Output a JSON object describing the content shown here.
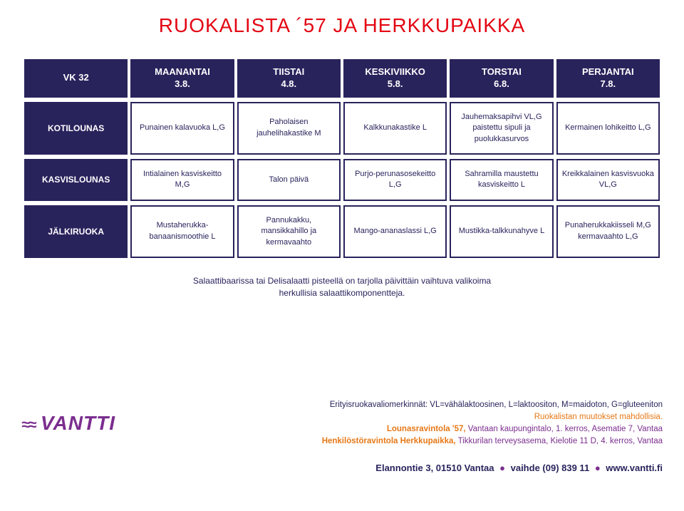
{
  "title": "RUOKALISTA ´57 JA HERKKUPAIKKA",
  "week_label": "VK 32",
  "days": [
    {
      "name": "MAANANTAI",
      "date": "3.8."
    },
    {
      "name": "TIISTAI",
      "date": "4.8."
    },
    {
      "name": "KESKIVIIKKO",
      "date": "5.8."
    },
    {
      "name": "TORSTAI",
      "date": "6.8."
    },
    {
      "name": "PERJANTAI",
      "date": "7.8."
    }
  ],
  "rows": [
    {
      "label": "KOTILOUNAS",
      "cells": [
        "Punainen kalavuoka L,G",
        "Paholaisen jauhelihakastike M",
        "Kalkkunakastike L",
        "Jauhemaksapihvi VL,G paistettu sipuli ja puolukkasurvos",
        "Kermainen lohikeitto L,G"
      ]
    },
    {
      "label": "KASVISLOUNAS",
      "cells": [
        "Intialainen kasviskeitto M,G",
        "Talon päivä",
        "Purjo-perunasosekeitto L,G",
        "Sahramilla maustettu kasviskeitto L",
        "Kreikkalainen kasvisvuoka VL,G"
      ]
    },
    {
      "label": "JÄLKIRUOKA",
      "cells": [
        "Mustaherukka-banaanismoothie L",
        "Pannukakku, mansikkahillo ja kermavaahto",
        "Mango-ananaslassi L,G",
        "Mustikka-talkkunahyve L",
        "Punaherukkakiisseli M,G kermavaahto L,G"
      ]
    }
  ],
  "note_line1": "Salaattibaarissa tai Delisalaatti pisteellä on tarjolla päivittäin vaihtuva valikoima",
  "note_line2": "herkullisia salaattikomponentteja.",
  "footer": {
    "diet_line": "Erityisruokavaliomerkinnät: VL=vähälaktoosinen, L=laktoositon, M=maidoton, G=gluteeniton",
    "change_line": "Ruokalistan muutokset mahdollisia.",
    "r1_name": "Lounasravintola '57,",
    "r1_addr": " Vantaan kaupungintalo, 1. kerros, Asematie 7, Vantaa",
    "r2_name": "Henkilöstöravintola Herkkupaikka,",
    "r2_addr": " Tikkurilan terveysasema, Kielotie 11 D, 4. kerros, Vantaa"
  },
  "contact": {
    "addr": "Elannontie 3, 01510 Vantaa",
    "phone_label": "vaihde (09) 839 11",
    "site": "www.vantti.fi"
  },
  "colors": {
    "title_color": "#e30613",
    "header_bg": "#29235c",
    "header_fg": "#ffffff",
    "cell_border": "#29235c",
    "orange": "#e67817",
    "purple": "#7b2e8e"
  }
}
